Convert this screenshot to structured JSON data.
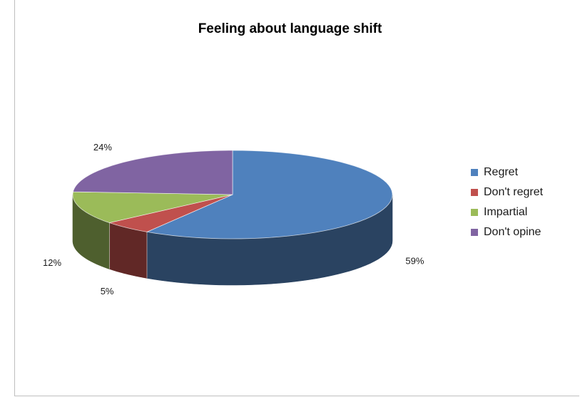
{
  "chart_data": {
    "type": "pie",
    "title": "Feeling about language shift",
    "categories": [
      "Regret",
      "Don't regret",
      "Impartial",
      "Don't opine"
    ],
    "values": [
      59,
      5,
      12,
      24
    ],
    "labels": [
      "59%",
      "5%",
      "12%",
      "24%"
    ],
    "colors": [
      "#4f81bd",
      "#c0504d",
      "#9bbb59",
      "#8064a2"
    ],
    "side_colors": [
      "#2a4361",
      "#612826",
      "#4e5f2e",
      "#41345a"
    ],
    "legend_position": "right",
    "style": "3d"
  }
}
